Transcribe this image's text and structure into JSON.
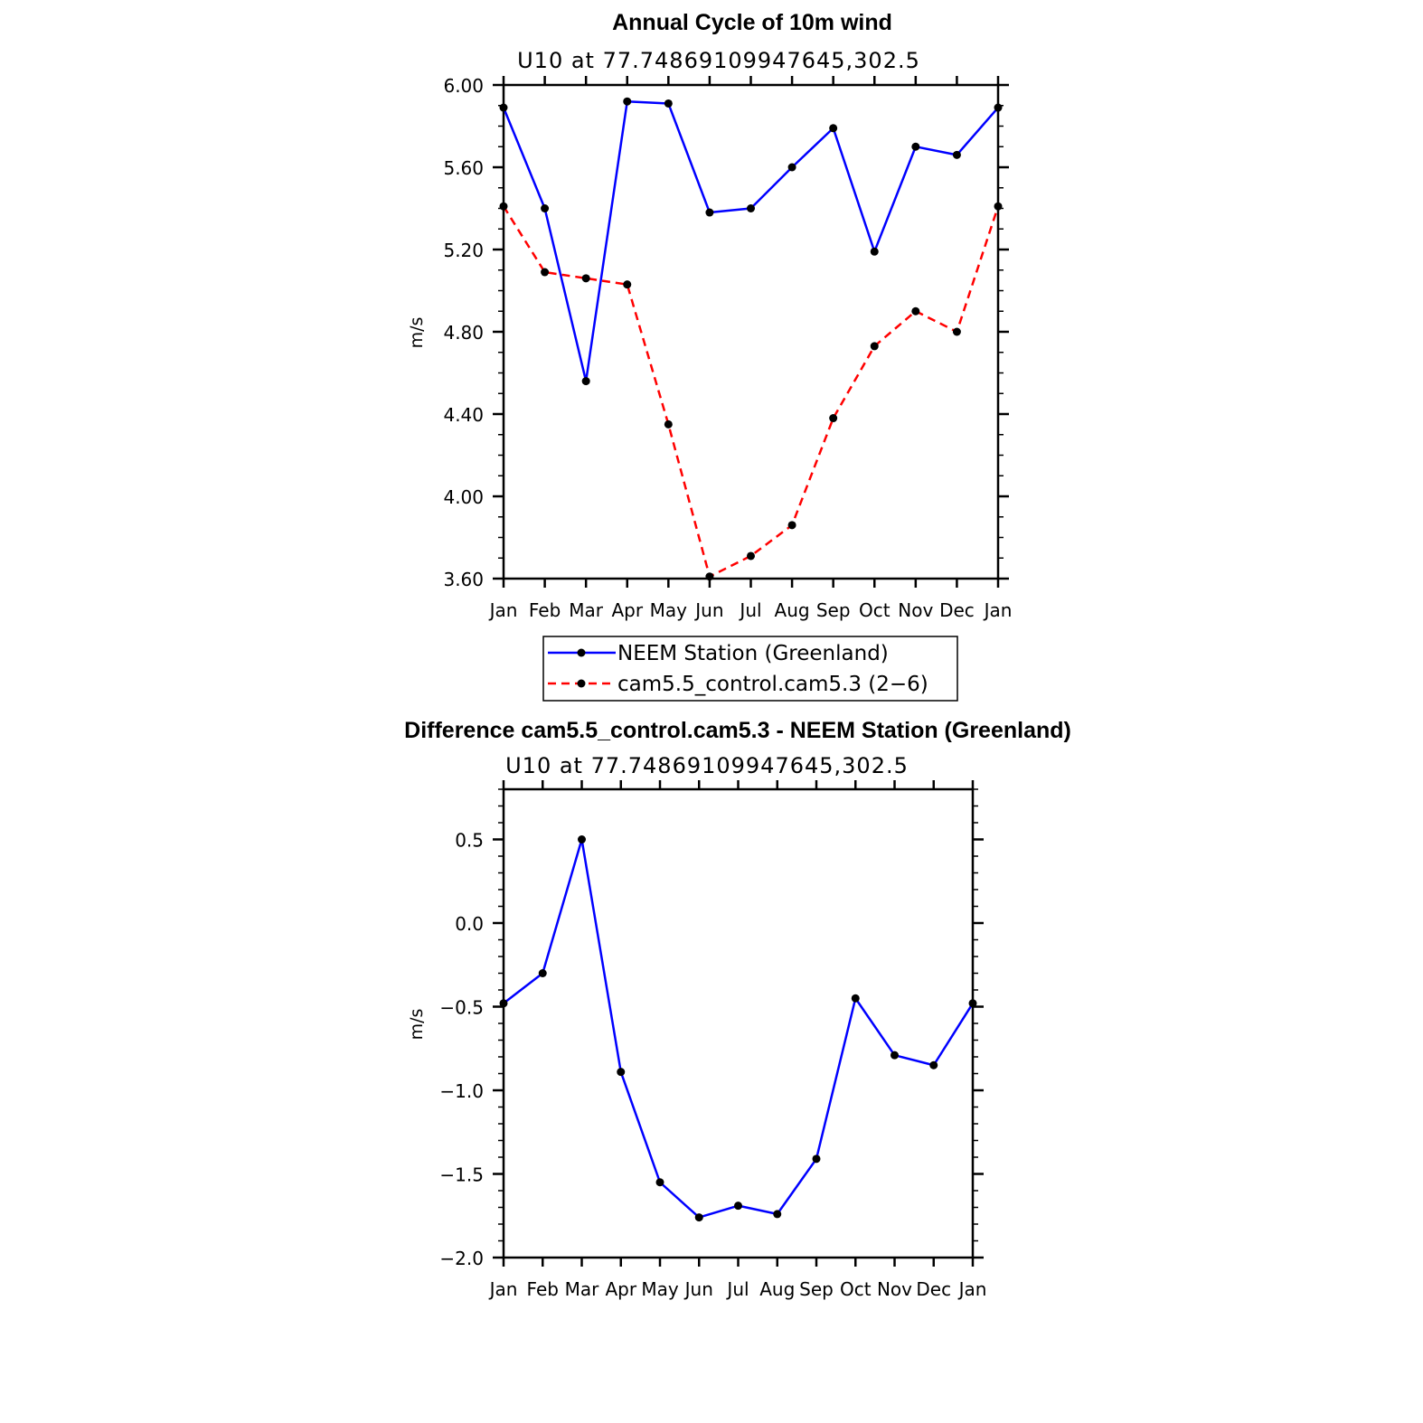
{
  "chart_data": [
    {
      "type": "line",
      "title": "Annual Cycle of 10m wind",
      "subtitle": "U10  at  77.74869109947645,302.5",
      "xlabel": "",
      "ylabel": "m/s",
      "categories": [
        "Jan",
        "Feb",
        "Mar",
        "Apr",
        "May",
        "Jun",
        "Jul",
        "Aug",
        "Sep",
        "Oct",
        "Nov",
        "Dec",
        "Jan"
      ],
      "ylim": [
        3.6,
        6.0
      ],
      "yticks": [
        "3.60",
        "4.00",
        "4.40",
        "4.80",
        "5.20",
        "5.60",
        "6.00"
      ],
      "series": [
        {
          "name": "NEEM Station (Greenland)",
          "color": "#0000ff",
          "dash": "solid",
          "values": [
            5.89,
            5.4,
            4.56,
            5.92,
            5.91,
            5.38,
            5.4,
            5.6,
            5.79,
            5.19,
            5.7,
            5.66,
            5.89
          ]
        },
        {
          "name": "cam5.5_control.cam5.3 (2−6)",
          "color": "#ff0000",
          "dash": "dashed",
          "values": [
            5.41,
            5.09,
            5.06,
            5.03,
            4.35,
            3.61,
            3.71,
            3.86,
            4.38,
            4.73,
            4.9,
            4.8,
            5.41
          ]
        }
      ],
      "legend": "below"
    },
    {
      "type": "line",
      "title": "Difference cam5.5_control.cam5.3 - NEEM Station (Greenland)",
      "subtitle": "U10  at  77.74869109947645,302.5",
      "xlabel": "",
      "ylabel": "m/s",
      "categories": [
        "Jan",
        "Feb",
        "Mar",
        "Apr",
        "May",
        "Jun",
        "Jul",
        "Aug",
        "Sep",
        "Oct",
        "Nov",
        "Dec",
        "Jan"
      ],
      "ylim": [
        -2.0,
        0.8
      ],
      "yticks": [
        "−2.0",
        "−1.5",
        "−1.0",
        "−0.5",
        "0.0",
        "0.5"
      ],
      "ytick_values": [
        -2.0,
        -1.5,
        -1.0,
        -0.5,
        0.0,
        0.5
      ],
      "series": [
        {
          "name": "Difference",
          "color": "#0000ff",
          "dash": "solid",
          "values": [
            -0.48,
            -0.3,
            0.5,
            -0.89,
            -1.55,
            -1.76,
            -1.69,
            -1.74,
            -1.41,
            -0.45,
            -0.79,
            -0.85,
            -0.48
          ]
        }
      ]
    }
  ]
}
